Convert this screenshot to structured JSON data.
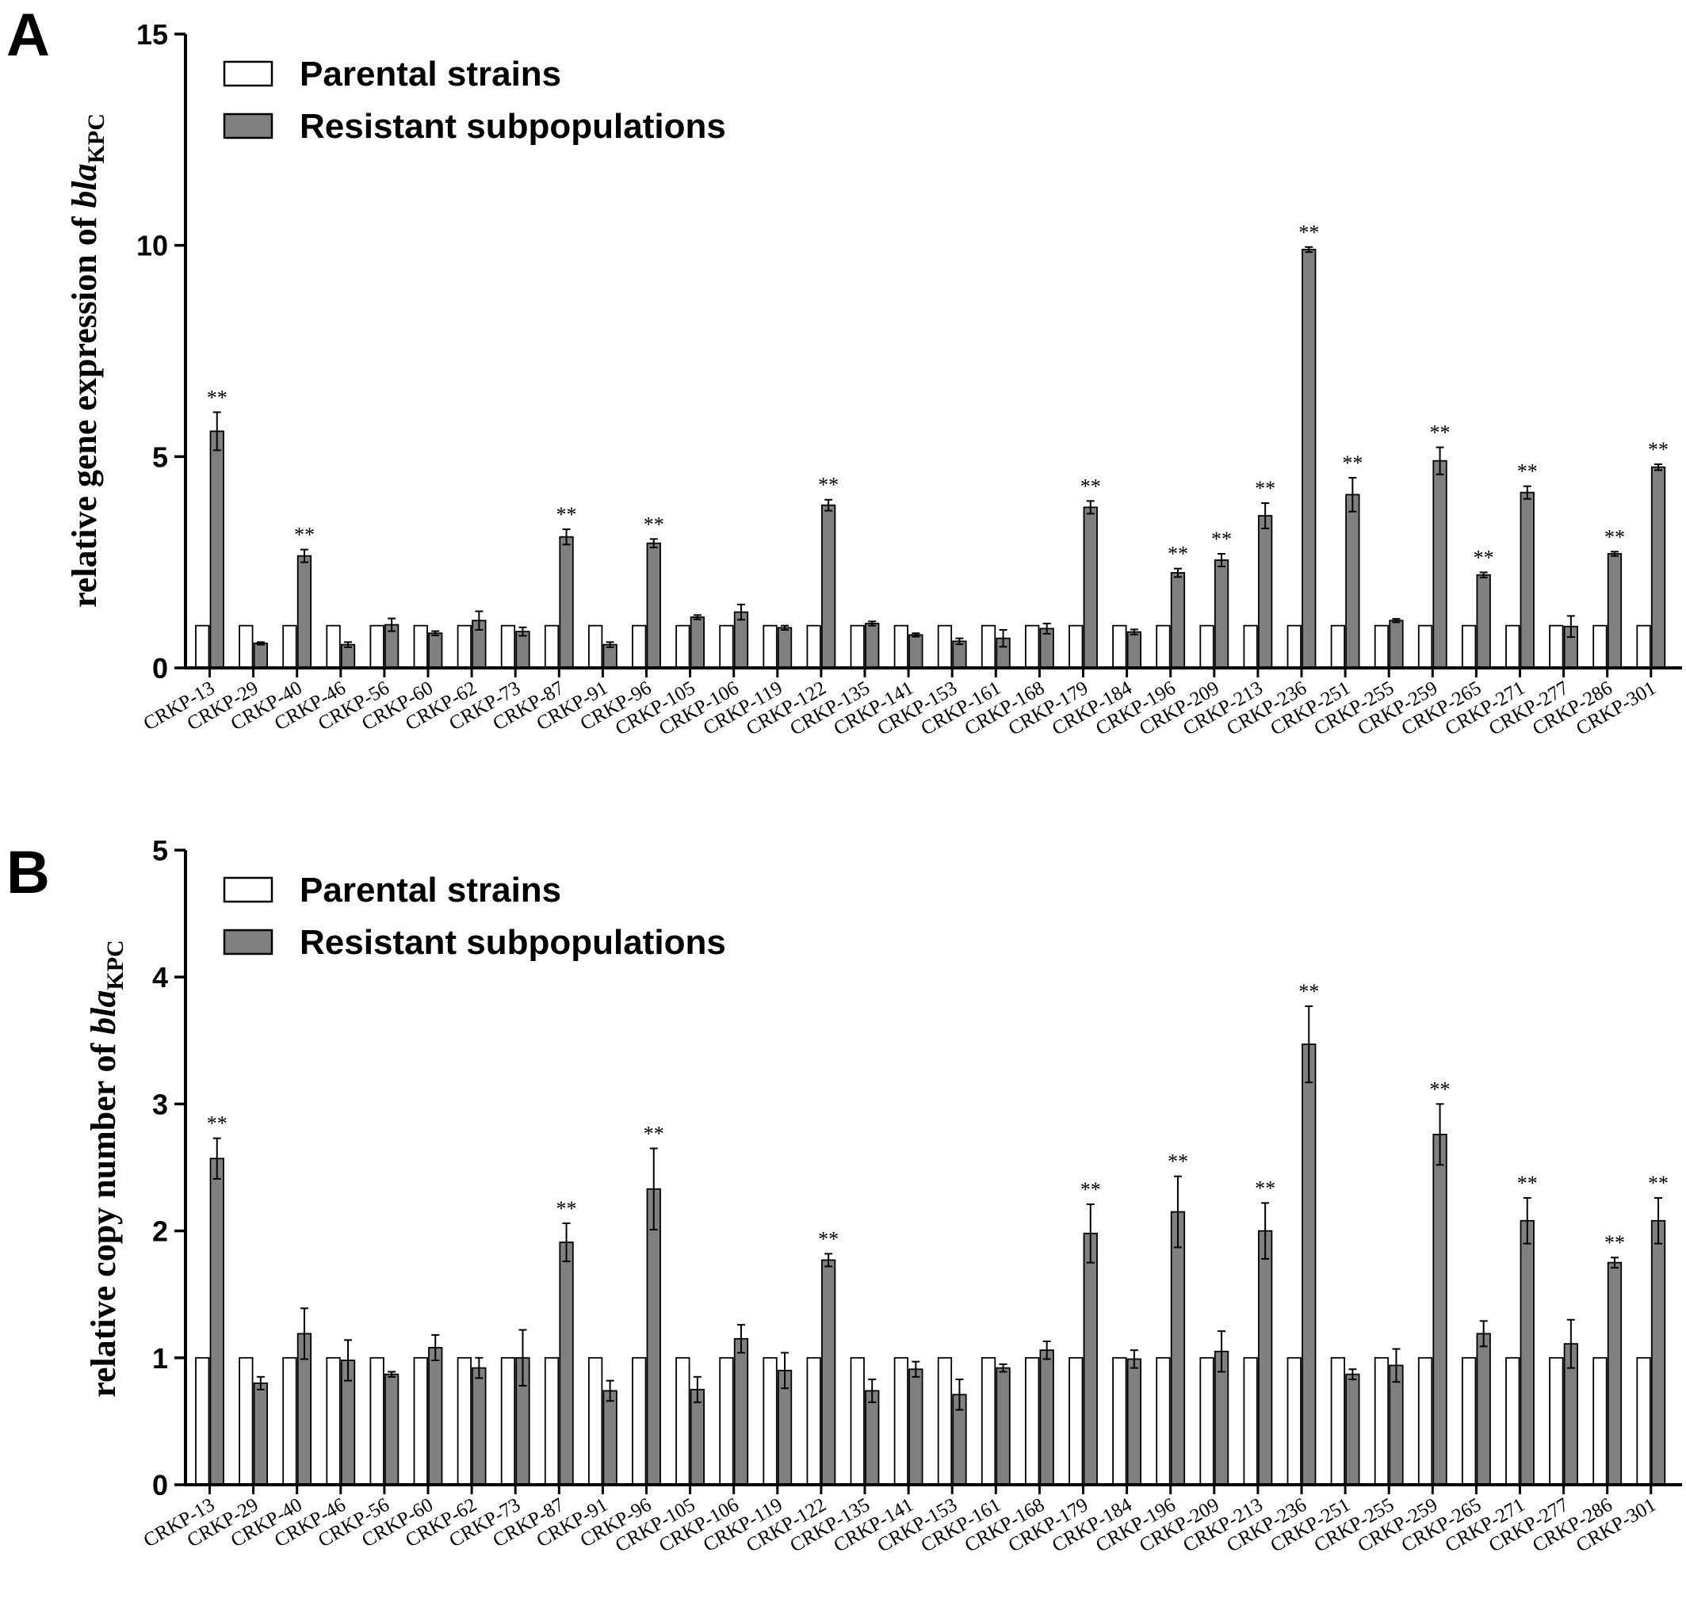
{
  "panels": [
    {
      "letter": "A",
      "legend": {
        "parental_label": "Parental strains",
        "resistant_label": "Resistant subpopulations"
      },
      "ylabel_main": "relative gene expression of ",
      "ylabel_gene": "bla",
      "ylabel_sub": "KPC"
    },
    {
      "letter": "B",
      "legend": {
        "parental_label": "Parental strains",
        "resistant_label": "Resistant subpopulations"
      },
      "ylabel_main": "relative copy number of ",
      "ylabel_gene": "bla",
      "ylabel_sub": "KPC"
    }
  ],
  "chart_data": [
    {
      "type": "bar",
      "panel": "A",
      "title": "",
      "xlabel": "",
      "ylabel": "relative gene expression of blaKPC",
      "ylim": [
        0,
        15
      ],
      "yticks": [
        0,
        5,
        10,
        15
      ],
      "legend_position": "top-left",
      "colors": {
        "parental": "#ffffff",
        "resistant": "#808080",
        "edge": "#000000"
      },
      "categories": [
        "CRKP-13",
        "CRKP-29",
        "CRKP-40",
        "CRKP-46",
        "CRKP-56",
        "CRKP-60",
        "CRKP-62",
        "CRKP-73",
        "CRKP-87",
        "CRKP-91",
        "CRKP-96",
        "CRKP-105",
        "CRKP-106",
        "CRKP-119",
        "CRKP-122",
        "CRKP-135",
        "CRKP-141",
        "CRKP-153",
        "CRKP-161",
        "CRKP-168",
        "CRKP-179",
        "CRKP-184",
        "CRKP-196",
        "CRKP-209",
        "CRKP-213",
        "CRKP-236",
        "CRKP-251",
        "CRKP-255",
        "CRKP-259",
        "CRKP-265",
        "CRKP-271",
        "CRKP-277",
        "CRKP-286",
        "CRKP-301"
      ],
      "series": [
        {
          "name": "Parental strains",
          "values": [
            1,
            1,
            1,
            1,
            1,
            1,
            1,
            1,
            1,
            1,
            1,
            1,
            1,
            1,
            1,
            1,
            1,
            1,
            1,
            1,
            1,
            1,
            1,
            1,
            1,
            1,
            1,
            1,
            1,
            1,
            1,
            1,
            1,
            1
          ]
        },
        {
          "name": "Resistant subpopulations",
          "values": [
            5.6,
            0.58,
            2.65,
            0.55,
            1.02,
            0.82,
            1.12,
            0.86,
            3.1,
            0.55,
            2.95,
            1.2,
            1.32,
            0.95,
            3.85,
            1.05,
            0.78,
            0.63,
            0.7,
            0.93,
            3.8,
            0.85,
            2.25,
            2.55,
            3.6,
            9.9,
            4.1,
            1.12,
            4.9,
            2.2,
            4.15,
            0.98,
            2.7,
            4.75
          ],
          "errors": [
            0.45,
            0.03,
            0.15,
            0.06,
            0.15,
            0.05,
            0.22,
            0.1,
            0.18,
            0.06,
            0.1,
            0.05,
            0.18,
            0.05,
            0.13,
            0.05,
            0.04,
            0.07,
            0.2,
            0.12,
            0.15,
            0.06,
            0.1,
            0.15,
            0.3,
            0.06,
            0.4,
            0.04,
            0.32,
            0.06,
            0.15,
            0.25,
            0.05,
            0.07
          ]
        }
      ],
      "significance": [
        "**",
        "",
        "**",
        "",
        "",
        "",
        "",
        "",
        "**",
        "",
        "**",
        "",
        "",
        "",
        "**",
        "",
        "",
        "",
        "",
        "",
        "**",
        "",
        "**",
        "**",
        "**",
        "**",
        "**",
        "",
        "**",
        "**",
        "**",
        "",
        "**",
        "**"
      ]
    },
    {
      "type": "bar",
      "panel": "B",
      "title": "",
      "xlabel": "",
      "ylabel": "relative copy number of blaKPC",
      "ylim": [
        0,
        5
      ],
      "yticks": [
        0,
        1,
        2,
        3,
        4,
        5
      ],
      "legend_position": "top-left",
      "colors": {
        "parental": "#ffffff",
        "resistant": "#808080",
        "edge": "#000000"
      },
      "categories": [
        "CRKP-13",
        "CRKP-29",
        "CRKP-40",
        "CRKP-46",
        "CRKP-56",
        "CRKP-60",
        "CRKP-62",
        "CRKP-73",
        "CRKP-87",
        "CRKP-91",
        "CRKP-96",
        "CRKP-105",
        "CRKP-106",
        "CRKP-119",
        "CRKP-122",
        "CRKP-135",
        "CRKP-141",
        "CRKP-153",
        "CRKP-161",
        "CRKP-168",
        "CRKP-179",
        "CRKP-184",
        "CRKP-196",
        "CRKP-209",
        "CRKP-213",
        "CRKP-236",
        "CRKP-251",
        "CRKP-255",
        "CRKP-259",
        "CRKP-265",
        "CRKP-271",
        "CRKP-277",
        "CRKP-286",
        "CRKP-301"
      ],
      "series": [
        {
          "name": "Parental strains",
          "values": [
            1,
            1,
            1,
            1,
            1,
            1,
            1,
            1,
            1,
            1,
            1,
            1,
            1,
            1,
            1,
            1,
            1,
            1,
            1,
            1,
            1,
            1,
            1,
            1,
            1,
            1,
            1,
            1,
            1,
            1,
            1,
            1,
            1,
            1
          ]
        },
        {
          "name": "Resistant subpopulations",
          "values": [
            2.57,
            0.8,
            1.19,
            0.98,
            0.87,
            1.08,
            0.92,
            1.0,
            1.91,
            0.74,
            2.33,
            0.75,
            1.15,
            0.9,
            1.77,
            0.74,
            0.91,
            0.71,
            0.92,
            1.06,
            1.98,
            0.99,
            2.15,
            1.05,
            2.0,
            3.47,
            0.87,
            0.94,
            2.76,
            1.19,
            2.08,
            1.11,
            1.75,
            2.08
          ],
          "errors": [
            0.16,
            0.05,
            0.2,
            0.16,
            0.02,
            0.1,
            0.08,
            0.22,
            0.15,
            0.08,
            0.32,
            0.1,
            0.11,
            0.14,
            0.05,
            0.09,
            0.06,
            0.12,
            0.03,
            0.07,
            0.23,
            0.07,
            0.28,
            0.16,
            0.22,
            0.3,
            0.04,
            0.13,
            0.24,
            0.1,
            0.18,
            0.19,
            0.04,
            0.18
          ]
        }
      ],
      "significance": [
        "**",
        "",
        "",
        "",
        "",
        "",
        "",
        "",
        "**",
        "",
        "**",
        "",
        "",
        "",
        "**",
        "",
        "",
        "",
        "",
        "",
        "**",
        "",
        "**",
        "",
        "**",
        "**",
        "",
        "",
        "**",
        "",
        "**",
        "",
        "**",
        "**"
      ]
    }
  ]
}
